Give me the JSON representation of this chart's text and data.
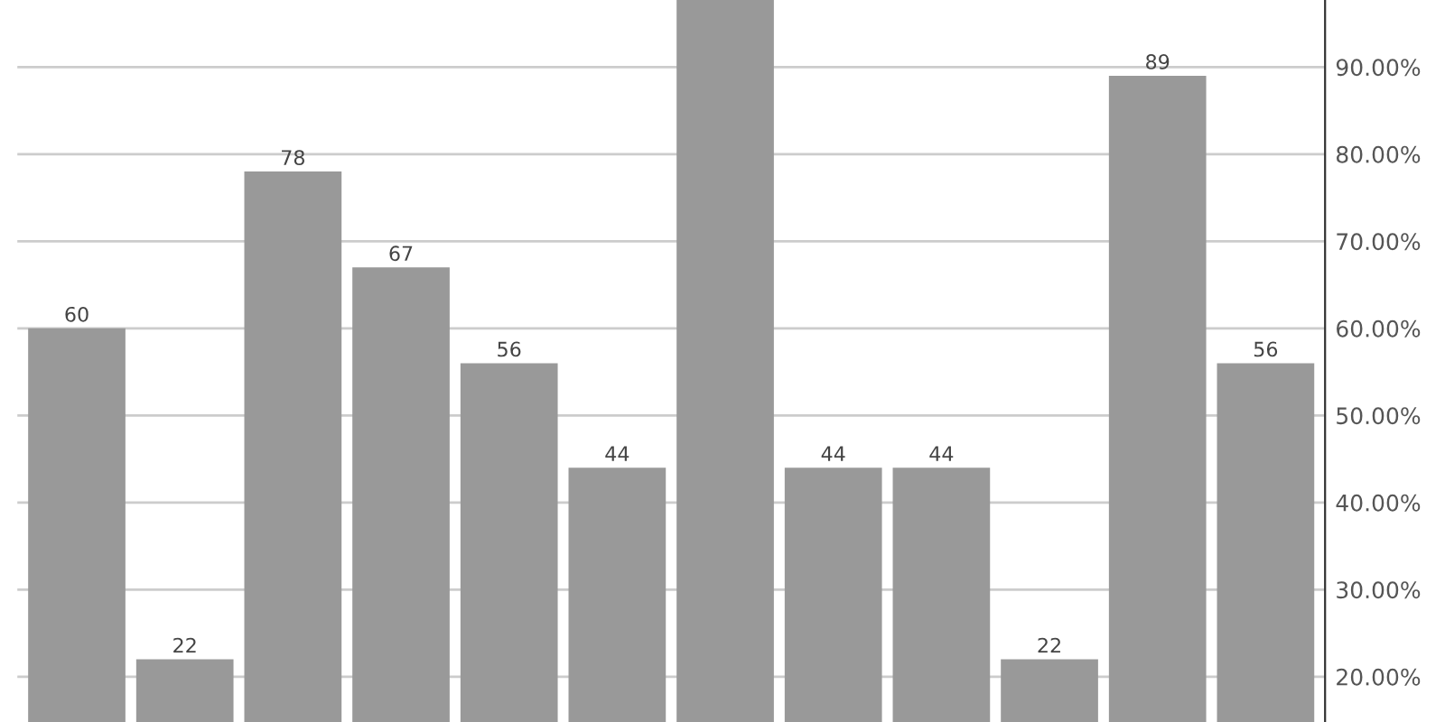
{
  "chart_data": {
    "type": "bar",
    "categories": [
      null,
      null,
      null,
      null,
      null,
      null,
      null,
      null,
      null,
      null,
      null,
      null
    ],
    "values": [
      60,
      22,
      78,
      67,
      56,
      44,
      97.7,
      44,
      44,
      22,
      89,
      56
    ],
    "value_labels": [
      "60",
      "22",
      "78",
      "67",
      "56",
      "44",
      null,
      "44",
      "44",
      "22",
      "89",
      "56"
    ],
    "color": "#999999",
    "ylim": [
      14.8,
      97.7
    ],
    "yticks": [
      {
        "value": 20,
        "label": "20.00%"
      },
      {
        "value": 30,
        "label": "30.00%"
      },
      {
        "value": 40,
        "label": "40.00%"
      },
      {
        "value": 50,
        "label": "50.00%"
      },
      {
        "value": 60,
        "label": "60.00%"
      },
      {
        "value": 70,
        "label": "70.00%"
      },
      {
        "value": 80,
        "label": "80.00%"
      },
      {
        "value": 90,
        "label": "90.00%"
      }
    ],
    "grid": "y",
    "tick_labels": "y"
  }
}
